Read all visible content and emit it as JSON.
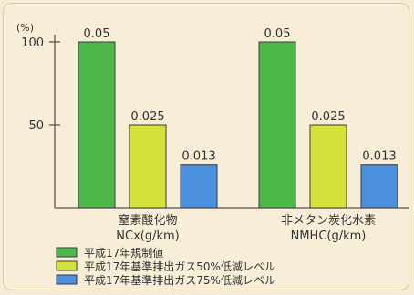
{
  "chart_data": {
    "type": "bar",
    "ylabel": "(%)",
    "ylim": [
      0,
      100
    ],
    "yticks": [
      {
        "value": 100,
        "label": "100"
      },
      {
        "value": 50,
        "label": "50"
      }
    ],
    "categories": [
      {
        "line1": "窒素酸化物",
        "line2": "NCx(g/km)"
      },
      {
        "line1": "非メタン炭化水素",
        "line2": "NMHC(g/km)"
      }
    ],
    "series": [
      {
        "name": "平成17年規制値",
        "color": "#4cb84a",
        "percent": [
          100,
          100
        ],
        "labels": [
          "0.05",
          "0.05"
        ]
      },
      {
        "name": "平成17年基準排出ガス50%低減レベル",
        "color": "#d6e23c",
        "percent": [
          50,
          50
        ],
        "labels": [
          "0.025",
          "0.025"
        ]
      },
      {
        "name": "平成17年基準排出ガス75%低減レベル",
        "color": "#4a90dc",
        "percent": [
          26,
          26
        ],
        "labels": [
          "0.013",
          "0.013"
        ]
      }
    ],
    "legend": "bottom-left",
    "grid": false
  }
}
